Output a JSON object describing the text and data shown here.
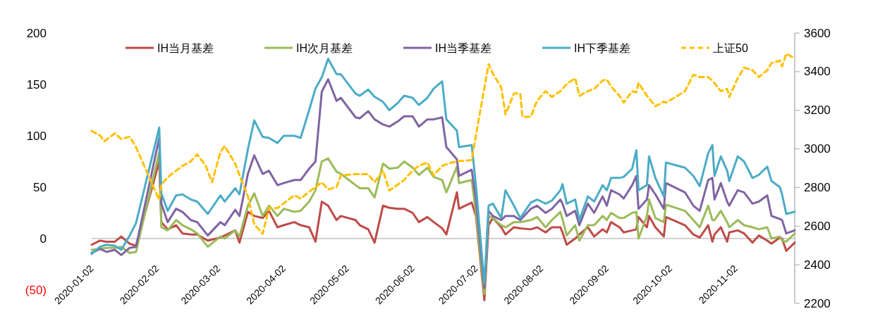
{
  "chart_data": {
    "type": "line",
    "legend": "top",
    "grid": false,
    "x": [
      "2020-01-02",
      "2020-01-06",
      "2020-01-09",
      "2020-01-13",
      "2020-01-16",
      "2020-01-20",
      "2020-01-23",
      "2020-02-03",
      "2020-02-04",
      "2020-02-07",
      "2020-02-11",
      "2020-02-14",
      "2020-02-18",
      "2020-02-21",
      "2020-02-26",
      "2020-03-03",
      "2020-03-05",
      "2020-03-10",
      "2020-03-12",
      "2020-03-16",
      "2020-03-19",
      "2020-03-23",
      "2020-03-26",
      "2020-03-30",
      "2020-04-02",
      "2020-04-07",
      "2020-04-10",
      "2020-04-14",
      "2020-04-17",
      "2020-04-20",
      "2020-04-23",
      "2020-04-27",
      "2020-04-29",
      "2020-05-06",
      "2020-05-08",
      "2020-05-12",
      "2020-05-15",
      "2020-05-19",
      "2020-05-22",
      "2020-05-26",
      "2020-05-29",
      "2020-06-02",
      "2020-06-05",
      "2020-06-09",
      "2020-06-12",
      "2020-06-16",
      "2020-06-18",
      "2020-06-23",
      "2020-06-24",
      "2020-06-30",
      "2020-07-02",
      "2020-07-06",
      "2020-07-08",
      "2020-07-10",
      "2020-07-14",
      "2020-07-16",
      "2020-07-20",
      "2020-07-23",
      "2020-07-28",
      "2020-07-31",
      "2020-08-04",
      "2020-08-07",
      "2020-08-11",
      "2020-08-12",
      "2020-08-14",
      "2020-08-18",
      "2020-08-20",
      "2020-08-24",
      "2020-08-27",
      "2020-08-31",
      "2020-09-02",
      "2020-09-04",
      "2020-09-08",
      "2020-09-10",
      "2020-09-14",
      "2020-09-16",
      "2020-09-17",
      "2020-09-21",
      "2020-09-22",
      "2020-09-25",
      "2020-09-29",
      "2020-09-30",
      "2020-10-09",
      "2020-10-13",
      "2020-10-16",
      "2020-10-20",
      "2020-10-22",
      "2020-10-23",
      "2020-10-26",
      "2020-10-29",
      "2020-10-30",
      "2020-11-03",
      "2020-11-06",
      "2020-11-10",
      "2020-11-13",
      "2020-11-17",
      "2020-11-19",
      "2020-11-23",
      "2020-11-24",
      "2020-11-26",
      "2020-11-30"
    ],
    "series": [
      {
        "name": "IH当月基差",
        "color": "#be4b48",
        "values": [
          -6,
          -2,
          -3,
          -3,
          2,
          -5,
          -7,
          75,
          16,
          9,
          13,
          5,
          4,
          4,
          -2,
          1,
          3,
          8,
          -4,
          26,
          22,
          20,
          27,
          11,
          13,
          16,
          13,
          11,
          -3,
          36,
          32,
          18,
          22,
          18,
          13,
          9,
          -4,
          32,
          30,
          29,
          29,
          25,
          16,
          21,
          16,
          10,
          4,
          45,
          29,
          35,
          22,
          -60,
          13,
          20,
          11,
          4,
          11,
          10,
          9,
          11,
          6,
          11,
          11,
          6,
          -6,
          0,
          4,
          11,
          2,
          9,
          6,
          16,
          11,
          6,
          8,
          9,
          21,
          11,
          22,
          11,
          2,
          21,
          13,
          4,
          1,
          13,
          -3,
          4,
          11,
          -3,
          6,
          8,
          5,
          -4,
          3,
          -2,
          -5,
          1,
          0,
          -12,
          -4
        ]
      },
      {
        "name": "IH次月基差",
        "color": "#9bbb59",
        "values": [
          -11,
          -10,
          -9,
          -9,
          -8,
          -14,
          -13,
          84,
          11,
          8,
          18,
          13,
          9,
          5,
          -8,
          2,
          0,
          8,
          2,
          32,
          44,
          22,
          32,
          22,
          29,
          26,
          27,
          36,
          47,
          75,
          78,
          65,
          63,
          52,
          49,
          49,
          40,
          73,
          68,
          69,
          75,
          69,
          62,
          69,
          60,
          57,
          45,
          70,
          54,
          57,
          25,
          -54,
          22,
          20,
          13,
          11,
          16,
          16,
          18,
          21,
          11,
          18,
          26,
          19,
          3,
          13,
          -2,
          13,
          13,
          22,
          18,
          25,
          20,
          20,
          25,
          26,
          0,
          22,
          38,
          20,
          16,
          33,
          27,
          18,
          11,
          32,
          18,
          18,
          27,
          16,
          11,
          18,
          13,
          11,
          9,
          11,
          0,
          2,
          -2,
          -3,
          5
        ]
      },
      {
        "name": "IH当季基差",
        "color": "#8064a2",
        "values": [
          -14,
          -10,
          -13,
          -11,
          -16,
          -9,
          -8,
          98,
          34,
          16,
          29,
          26,
          18,
          16,
          3,
          16,
          13,
          28,
          22,
          63,
          81,
          63,
          66,
          52,
          54,
          57,
          57,
          68,
          75,
          143,
          155,
          134,
          137,
          118,
          117,
          124,
          116,
          111,
          109,
          114,
          119,
          119,
          109,
          116,
          116,
          118,
          89,
          77,
          61,
          67,
          38,
          -48,
          27,
          22,
          18,
          22,
          22,
          18,
          29,
          32,
          25,
          29,
          38,
          34,
          22,
          27,
          13,
          34,
          25,
          41,
          32,
          47,
          43,
          39,
          52,
          61,
          29,
          38,
          52,
          43,
          29,
          54,
          45,
          32,
          27,
          57,
          59,
          38,
          54,
          36,
          32,
          47,
          45,
          34,
          36,
          42,
          22,
          19,
          18,
          5,
          8
        ]
      },
      {
        "name": "IH下季基差",
        "color": "#4bacc6",
        "values": [
          -15,
          -8,
          -6,
          -7,
          -11,
          3,
          15,
          108,
          44,
          27,
          42,
          43,
          38,
          36,
          24,
          42,
          36,
          49,
          43,
          87,
          115,
          99,
          98,
          93,
          100,
          100,
          98,
          125,
          146,
          157,
          175,
          160,
          160,
          141,
          139,
          145,
          138,
          133,
          125,
          132,
          139,
          137,
          130,
          137,
          146,
          153,
          116,
          105,
          89,
          91,
          52,
          -44,
          32,
          34,
          20,
          47,
          32,
          20,
          35,
          38,
          34,
          37,
          47,
          53,
          34,
          38,
          18,
          41,
          36,
          52,
          47,
          59,
          59,
          60,
          68,
          86,
          47,
          52,
          80,
          59,
          41,
          74,
          69,
          61,
          51,
          83,
          91,
          61,
          80,
          66,
          56,
          80,
          75,
          59,
          62,
          70,
          56,
          50,
          43,
          24,
          26
        ]
      },
      {
        "name": "上证50",
        "color": "#ffc000",
        "axis": "y2",
        "line_style": "dashed",
        "x": [
          "2020-01-02",
          "2020-01-06",
          "2020-01-08",
          "2020-01-13",
          "2020-01-16",
          "2020-01-20",
          "2020-01-23",
          "2020-02-03",
          "2020-02-04",
          "2020-02-07",
          "2020-02-11",
          "2020-02-14",
          "2020-02-18",
          "2020-02-21",
          "2020-02-25",
          "2020-02-28",
          "2020-03-03",
          "2020-03-05",
          "2020-03-10",
          "2020-03-12",
          "2020-03-16",
          "2020-03-19",
          "2020-03-23",
          "2020-03-26",
          "2020-03-30",
          "2020-04-02",
          "2020-04-07",
          "2020-04-10",
          "2020-04-14",
          "2020-04-17",
          "2020-04-20",
          "2020-04-23",
          "2020-04-27",
          "2020-04-29",
          "2020-05-06",
          "2020-05-12",
          "2020-05-15",
          "2020-05-19",
          "2020-05-22",
          "2020-05-26",
          "2020-05-29",
          "2020-06-02",
          "2020-06-05",
          "2020-06-09",
          "2020-06-12",
          "2020-06-16",
          "2020-06-19",
          "2020-06-23",
          "2020-06-30",
          "2020-07-02",
          "2020-07-08",
          "2020-07-10",
          "2020-07-14",
          "2020-07-16",
          "2020-07-20",
          "2020-07-23",
          "2020-07-24",
          "2020-07-28",
          "2020-07-31",
          "2020-08-04",
          "2020-08-07",
          "2020-08-11",
          "2020-08-14",
          "2020-08-18",
          "2020-08-20",
          "2020-08-24",
          "2020-08-27",
          "2020-08-31",
          "2020-09-02",
          "2020-09-04",
          "2020-09-08",
          "2020-09-10",
          "2020-09-14",
          "2020-09-16",
          "2020-09-17",
          "2020-09-21",
          "2020-09-25",
          "2020-09-29",
          "2020-09-30",
          "2020-10-09",
          "2020-10-13",
          "2020-10-16",
          "2020-10-20",
          "2020-10-22",
          "2020-10-26",
          "2020-10-29",
          "2020-10-30",
          "2020-11-03",
          "2020-11-06",
          "2020-11-10",
          "2020-11-13",
          "2020-11-17",
          "2020-11-19",
          "2020-11-23",
          "2020-11-24",
          "2020-11-26",
          "2020-11-30"
        ],
        "values": [
          3093,
          3069,
          3039,
          3081,
          3051,
          3063,
          3009,
          2736,
          2815,
          2853,
          2887,
          2912,
          2936,
          2972,
          2912,
          2827,
          2984,
          3015,
          2924,
          2864,
          2754,
          2609,
          2560,
          2693,
          2693,
          2718,
          2760,
          2742,
          2778,
          2802,
          2827,
          2790,
          2802,
          2863,
          2869,
          2869,
          2827,
          2888,
          2784,
          2815,
          2839,
          2888,
          2912,
          2930,
          2863,
          2912,
          2924,
          2936,
          2942,
          3069,
          3439,
          3390,
          3318,
          3178,
          3287,
          3287,
          3166,
          3166,
          3251,
          3299,
          3269,
          3299,
          3336,
          3366,
          3275,
          3299,
          3311,
          3354,
          3360,
          3324,
          3275,
          3239,
          3299,
          3293,
          3342,
          3275,
          3221,
          3245,
          3239,
          3299,
          3384,
          3372,
          3372,
          3354,
          3299,
          3311,
          3269,
          3366,
          3421,
          3408,
          3372,
          3408,
          3445,
          3457,
          3427,
          3493,
          3469
        ]
      }
    ],
    "xlim": [
      "2020-01-02",
      "2020-11-30"
    ],
    "xticks": [
      "2020-01-02",
      "2020-02-02",
      "2020-03-02",
      "2020-04-02",
      "2020-05-02",
      "2020-06-02",
      "2020-07-02",
      "2020-08-02",
      "2020-09-02",
      "2020-10-02",
      "2020-11-02"
    ],
    "ylim": [
      -63,
      200
    ],
    "yticks": [
      {
        "value": -50,
        "label": "(50)"
      },
      0,
      50,
      100,
      150,
      200
    ],
    "y2lim": [
      2200,
      3600
    ],
    "y2ticks": [
      2200,
      2400,
      2600,
      2800,
      3000,
      3200,
      3400,
      3600
    ]
  }
}
